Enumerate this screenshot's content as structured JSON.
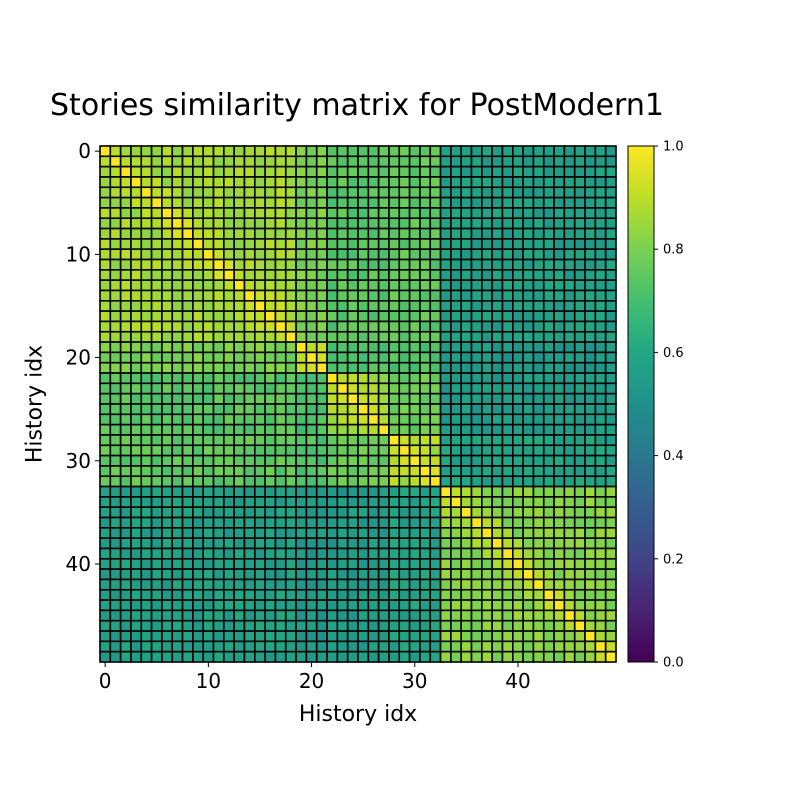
{
  "chart_data": {
    "type": "heatmap",
    "title": "Stories similarity matrix for PostModern1",
    "xlabel": "History idx",
    "ylabel": "History idx",
    "n": 50,
    "x_ticks": [
      "0",
      "10",
      "20",
      "30",
      "40"
    ],
    "y_ticks": [
      "0",
      "10",
      "20",
      "30",
      "40"
    ],
    "colorbar_ticks": [
      "0.0",
      "0.2",
      "0.4",
      "0.6",
      "0.8",
      "1.0"
    ],
    "vmin": 0.0,
    "vmax": 1.0,
    "colormap": "viridis",
    "cell_edge_color": "#000000",
    "blocks": [
      {
        "start": 0,
        "end": 18,
        "within": 0.86
      },
      {
        "start": 19,
        "end": 21,
        "within": 0.86
      },
      {
        "start": 22,
        "end": 27,
        "within": 0.85
      },
      {
        "start": 28,
        "end": 32,
        "within": 0.87
      },
      {
        "start": 33,
        "end": 49,
        "within": 0.82
      }
    ],
    "block_similarity": [
      [
        0.86,
        0.8,
        0.74,
        0.75,
        0.57
      ],
      [
        0.8,
        0.86,
        0.72,
        0.72,
        0.54
      ],
      [
        0.74,
        0.72,
        0.85,
        0.77,
        0.55
      ],
      [
        0.75,
        0.72,
        0.77,
        0.87,
        0.58
      ],
      [
        0.57,
        0.54,
        0.55,
        0.58,
        0.82
      ]
    ],
    "diagonal": 1.0
  }
}
